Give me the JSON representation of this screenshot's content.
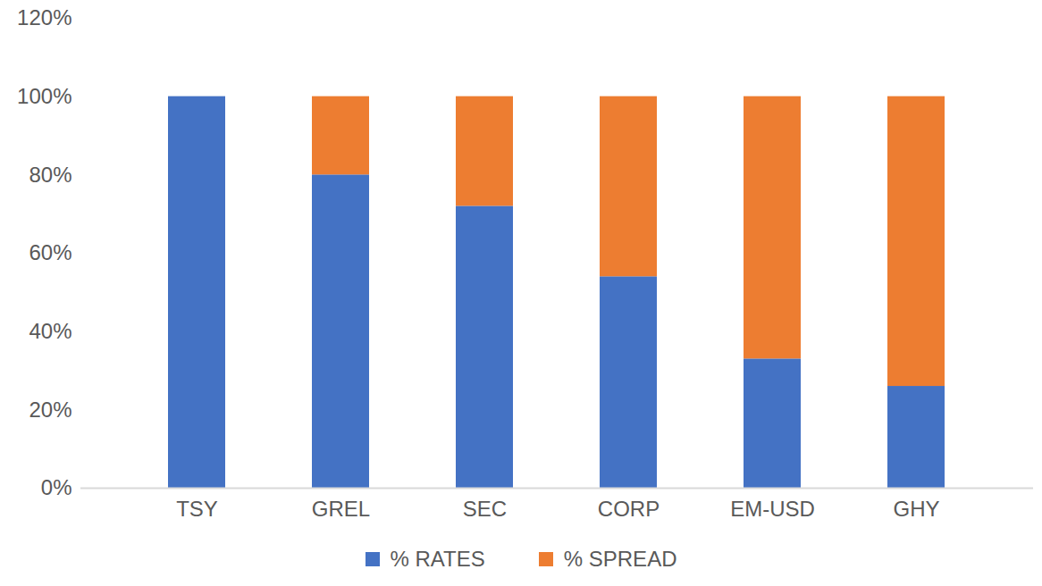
{
  "chart_data": {
    "type": "bar",
    "stacked": true,
    "legend": "bottom",
    "grid": false,
    "categories": [
      "TSY",
      "GREL",
      "SEC",
      "CORP",
      "EM-USD",
      "GHY"
    ],
    "series": [
      {
        "name": "% RATES",
        "color": "#4472c4",
        "values": [
          100,
          80,
          72,
          54,
          33,
          26
        ]
      },
      {
        "name": "% SPREAD",
        "color": "#ed7d31",
        "values": [
          0,
          20,
          28,
          46,
          67,
          74
        ]
      }
    ],
    "ylim": [
      0,
      120
    ],
    "yticks": [
      {
        "value": 0,
        "label": "0%"
      },
      {
        "value": 20,
        "label": "20%"
      },
      {
        "value": 40,
        "label": "40%"
      },
      {
        "value": 60,
        "label": "60%"
      },
      {
        "value": 80,
        "label": "80%"
      },
      {
        "value": 100,
        "label": "100%"
      },
      {
        "value": 120,
        "label": "120%"
      }
    ]
  }
}
